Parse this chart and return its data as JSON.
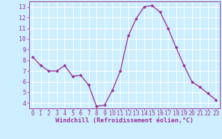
{
  "x": [
    0,
    1,
    2,
    3,
    4,
    5,
    6,
    7,
    8,
    9,
    10,
    11,
    12,
    13,
    14,
    15,
    16,
    17,
    18,
    19,
    20,
    21,
    22,
    23
  ],
  "y": [
    8.3,
    7.5,
    7.0,
    7.0,
    7.5,
    6.5,
    6.6,
    5.7,
    3.7,
    3.8,
    5.2,
    7.0,
    10.3,
    11.9,
    13.0,
    13.1,
    12.5,
    11.0,
    9.2,
    7.5,
    6.0,
    5.5,
    4.9,
    4.3
  ],
  "line_color": "#993399",
  "marker": "D",
  "marker_size": 2,
  "xlabel": "Windchill (Refroidissement éolien,°C)",
  "xlim": [
    -0.5,
    23.5
  ],
  "ylim": [
    3.5,
    13.5
  ],
  "yticks": [
    4,
    5,
    6,
    7,
    8,
    9,
    10,
    11,
    12,
    13
  ],
  "xticks": [
    0,
    1,
    2,
    3,
    4,
    5,
    6,
    7,
    8,
    9,
    10,
    11,
    12,
    13,
    14,
    15,
    16,
    17,
    18,
    19,
    20,
    21,
    22,
    23
  ],
  "background_color": "#cceeff",
  "grid_color": "#ffffff",
  "line_color_spine": "#993399",
  "tick_label_color": "#993399",
  "xlabel_fontsize": 6.5,
  "tick_fontsize": 6,
  "line_width": 1.0
}
